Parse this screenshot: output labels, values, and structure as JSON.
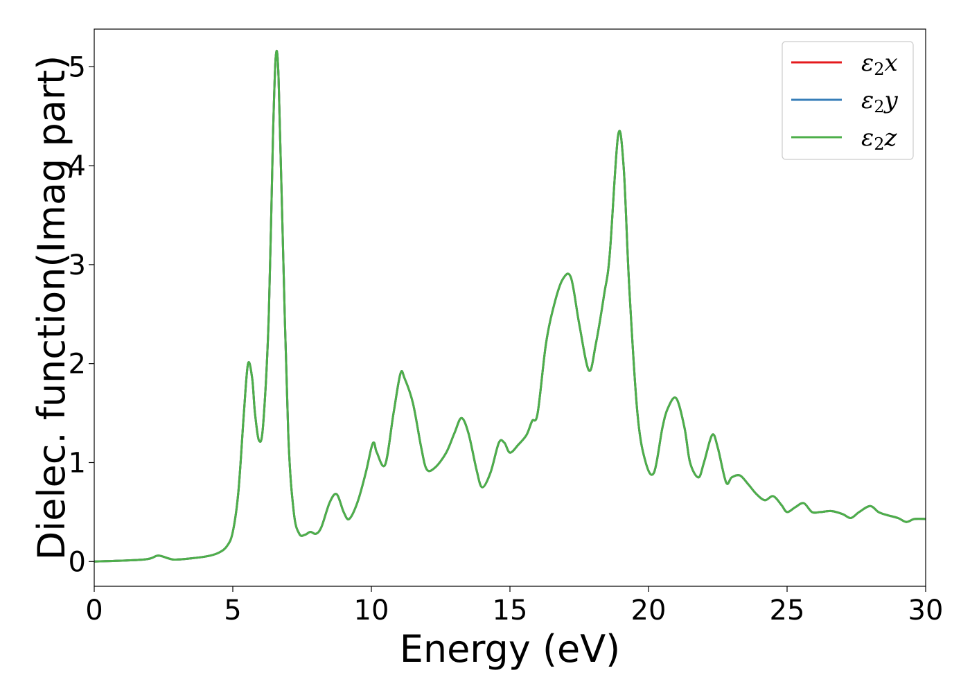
{
  "chart_data": {
    "type": "line",
    "xlabel": "Energy (eV)",
    "ylabel": "Dielec. function(Imag part)",
    "xlim": [
      0,
      30
    ],
    "ylim": [
      -0.25,
      5.38
    ],
    "xticks": [
      0,
      5,
      10,
      15,
      20,
      25,
      30
    ],
    "yticks": [
      0,
      1,
      2,
      3,
      4,
      5
    ],
    "xtick_labels": [
      "0",
      "5",
      "10",
      "15",
      "20",
      "25",
      "30"
    ],
    "ytick_labels": [
      "0",
      "1",
      "2",
      "3",
      "4",
      "5"
    ],
    "grid": false,
    "legend_position": "top-right",
    "series": [
      {
        "name": "ε2x",
        "name_base": "ε",
        "name_sub": "2",
        "name_var": "x",
        "color": "#e41a1c",
        "x": [
          0,
          1.8,
          2.3,
          2.7,
          3,
          4,
          4.5,
          4.8,
          5,
          5.2,
          5.4,
          5.55,
          5.7,
          5.8,
          5.95,
          6.1,
          6.3,
          6.45,
          6.55,
          6.65,
          6.8,
          7,
          7.2,
          7.4,
          7.6,
          7.8,
          8,
          8.2,
          8.5,
          8.75,
          9,
          9.2,
          9.5,
          9.8,
          10,
          10.1,
          10.2,
          10.5,
          10.8,
          11.05,
          11.2,
          11.5,
          11.8,
          12,
          12.3,
          12.7,
          13,
          13.25,
          13.5,
          13.8,
          14,
          14.3,
          14.6,
          14.8,
          15,
          15.3,
          15.6,
          15.8,
          16,
          16.3,
          16.6,
          16.9,
          17.2,
          17.5,
          17.85,
          18.1,
          18.4,
          18.6,
          18.9,
          19.1,
          19.3,
          19.6,
          19.9,
          20.2,
          20.5,
          20.7,
          21,
          21.3,
          21.5,
          21.8,
          22,
          22.3,
          22.5,
          22.8,
          23,
          23.3,
          23.6,
          23.9,
          24.2,
          24.5,
          24.8,
          25,
          25.3,
          25.6,
          25.9,
          26.2,
          26.6,
          27,
          27.3,
          27.6,
          28,
          28.3,
          28.6,
          29,
          29.3,
          29.6,
          30
        ],
        "y": [
          0,
          0.02,
          0.06,
          0.03,
          0.02,
          0.05,
          0.09,
          0.16,
          0.3,
          0.7,
          1.5,
          2.0,
          1.85,
          1.5,
          1.22,
          1.4,
          2.5,
          4.3,
          5.1,
          4.9,
          3.3,
          1.3,
          0.5,
          0.28,
          0.27,
          0.3,
          0.28,
          0.35,
          0.6,
          0.68,
          0.5,
          0.43,
          0.6,
          0.9,
          1.15,
          1.2,
          1.1,
          0.98,
          1.5,
          1.9,
          1.85,
          1.6,
          1.15,
          0.93,
          0.95,
          1.1,
          1.3,
          1.45,
          1.3,
          0.92,
          0.75,
          0.9,
          1.2,
          1.2,
          1.1,
          1.18,
          1.28,
          1.42,
          1.5,
          2.2,
          2.6,
          2.85,
          2.87,
          2.4,
          1.93,
          2.2,
          2.7,
          3.1,
          4.3,
          4.0,
          2.8,
          1.5,
          1.0,
          0.9,
          1.35,
          1.55,
          1.65,
          1.35,
          1.0,
          0.85,
          1.0,
          1.28,
          1.15,
          0.8,
          0.85,
          0.87,
          0.78,
          0.68,
          0.62,
          0.66,
          0.57,
          0.5,
          0.55,
          0.59,
          0.5,
          0.5,
          0.51,
          0.48,
          0.44,
          0.5,
          0.56,
          0.5,
          0.47,
          0.44,
          0.4,
          0.43,
          0.43
        ]
      },
      {
        "name": "ε2y",
        "name_base": "ε",
        "name_sub": "2",
        "name_var": "y",
        "color": "#377eb8",
        "x": [
          0,
          1.8,
          2.3,
          2.7,
          3,
          4,
          4.5,
          4.8,
          5,
          5.2,
          5.4,
          5.55,
          5.7,
          5.8,
          5.95,
          6.1,
          6.3,
          6.45,
          6.55,
          6.65,
          6.8,
          7,
          7.2,
          7.4,
          7.6,
          7.8,
          8,
          8.2,
          8.5,
          8.75,
          9,
          9.2,
          9.5,
          9.8,
          10,
          10.1,
          10.2,
          10.5,
          10.8,
          11.05,
          11.2,
          11.5,
          11.8,
          12,
          12.3,
          12.7,
          13,
          13.25,
          13.5,
          13.8,
          14,
          14.3,
          14.6,
          14.8,
          15,
          15.3,
          15.6,
          15.8,
          16,
          16.3,
          16.6,
          16.9,
          17.2,
          17.5,
          17.85,
          18.1,
          18.4,
          18.6,
          18.9,
          19.1,
          19.3,
          19.6,
          19.9,
          20.2,
          20.5,
          20.7,
          21,
          21.3,
          21.5,
          21.8,
          22,
          22.3,
          22.5,
          22.8,
          23,
          23.3,
          23.6,
          23.9,
          24.2,
          24.5,
          24.8,
          25,
          25.3,
          25.6,
          25.9,
          26.2,
          26.6,
          27,
          27.3,
          27.6,
          28,
          28.3,
          28.6,
          29,
          29.3,
          29.6,
          30
        ],
        "y": [
          0,
          0.02,
          0.06,
          0.03,
          0.02,
          0.05,
          0.09,
          0.16,
          0.3,
          0.7,
          1.5,
          2.0,
          1.85,
          1.5,
          1.22,
          1.4,
          2.5,
          4.3,
          5.1,
          4.9,
          3.3,
          1.3,
          0.5,
          0.28,
          0.27,
          0.3,
          0.28,
          0.35,
          0.6,
          0.68,
          0.5,
          0.43,
          0.6,
          0.9,
          1.15,
          1.2,
          1.1,
          0.98,
          1.5,
          1.9,
          1.85,
          1.6,
          1.15,
          0.93,
          0.95,
          1.1,
          1.3,
          1.45,
          1.3,
          0.92,
          0.75,
          0.9,
          1.2,
          1.2,
          1.1,
          1.18,
          1.28,
          1.42,
          1.5,
          2.2,
          2.6,
          2.85,
          2.87,
          2.4,
          1.93,
          2.2,
          2.7,
          3.1,
          4.3,
          4.0,
          2.8,
          1.5,
          1.0,
          0.9,
          1.35,
          1.55,
          1.65,
          1.35,
          1.0,
          0.85,
          1.0,
          1.28,
          1.15,
          0.8,
          0.85,
          0.87,
          0.78,
          0.68,
          0.62,
          0.66,
          0.57,
          0.5,
          0.55,
          0.59,
          0.5,
          0.5,
          0.51,
          0.48,
          0.44,
          0.5,
          0.56,
          0.5,
          0.47,
          0.44,
          0.4,
          0.43,
          0.43
        ]
      },
      {
        "name": "ε2z",
        "name_base": "ε",
        "name_sub": "2",
        "name_var": "z",
        "color": "#4daf4a",
        "x": [
          0,
          1.8,
          2.3,
          2.7,
          3,
          4,
          4.5,
          4.8,
          5,
          5.2,
          5.4,
          5.55,
          5.7,
          5.8,
          5.95,
          6.1,
          6.3,
          6.45,
          6.55,
          6.65,
          6.8,
          7,
          7.2,
          7.4,
          7.6,
          7.8,
          8,
          8.2,
          8.5,
          8.75,
          9,
          9.2,
          9.5,
          9.8,
          10,
          10.1,
          10.2,
          10.5,
          10.8,
          11.05,
          11.2,
          11.5,
          11.8,
          12,
          12.3,
          12.7,
          13,
          13.25,
          13.5,
          13.8,
          14,
          14.3,
          14.6,
          14.8,
          15,
          15.3,
          15.6,
          15.8,
          16,
          16.3,
          16.6,
          16.9,
          17.2,
          17.5,
          17.85,
          18.1,
          18.4,
          18.6,
          18.9,
          19.1,
          19.3,
          19.6,
          19.9,
          20.2,
          20.5,
          20.7,
          21,
          21.3,
          21.5,
          21.8,
          22,
          22.3,
          22.5,
          22.8,
          23,
          23.3,
          23.6,
          23.9,
          24.2,
          24.5,
          24.8,
          25,
          25.3,
          25.6,
          25.9,
          26.2,
          26.6,
          27,
          27.3,
          27.6,
          28,
          28.3,
          28.6,
          29,
          29.3,
          29.6,
          30
        ],
        "y": [
          0,
          0.02,
          0.06,
          0.03,
          0.02,
          0.05,
          0.09,
          0.16,
          0.3,
          0.7,
          1.5,
          2.0,
          1.85,
          1.5,
          1.22,
          1.4,
          2.5,
          4.3,
          5.1,
          4.9,
          3.3,
          1.3,
          0.5,
          0.28,
          0.27,
          0.3,
          0.28,
          0.35,
          0.6,
          0.68,
          0.5,
          0.43,
          0.6,
          0.9,
          1.15,
          1.2,
          1.1,
          0.98,
          1.5,
          1.9,
          1.85,
          1.6,
          1.15,
          0.93,
          0.95,
          1.1,
          1.3,
          1.45,
          1.3,
          0.92,
          0.75,
          0.9,
          1.2,
          1.2,
          1.1,
          1.18,
          1.28,
          1.42,
          1.5,
          2.2,
          2.6,
          2.85,
          2.87,
          2.4,
          1.93,
          2.2,
          2.7,
          3.1,
          4.3,
          4.0,
          2.8,
          1.5,
          1.0,
          0.9,
          1.35,
          1.55,
          1.65,
          1.35,
          1.0,
          0.85,
          1.0,
          1.28,
          1.15,
          0.8,
          0.85,
          0.87,
          0.78,
          0.68,
          0.62,
          0.66,
          0.57,
          0.5,
          0.55,
          0.59,
          0.5,
          0.5,
          0.51,
          0.48,
          0.44,
          0.5,
          0.56,
          0.5,
          0.47,
          0.44,
          0.4,
          0.43,
          0.43
        ]
      }
    ]
  }
}
